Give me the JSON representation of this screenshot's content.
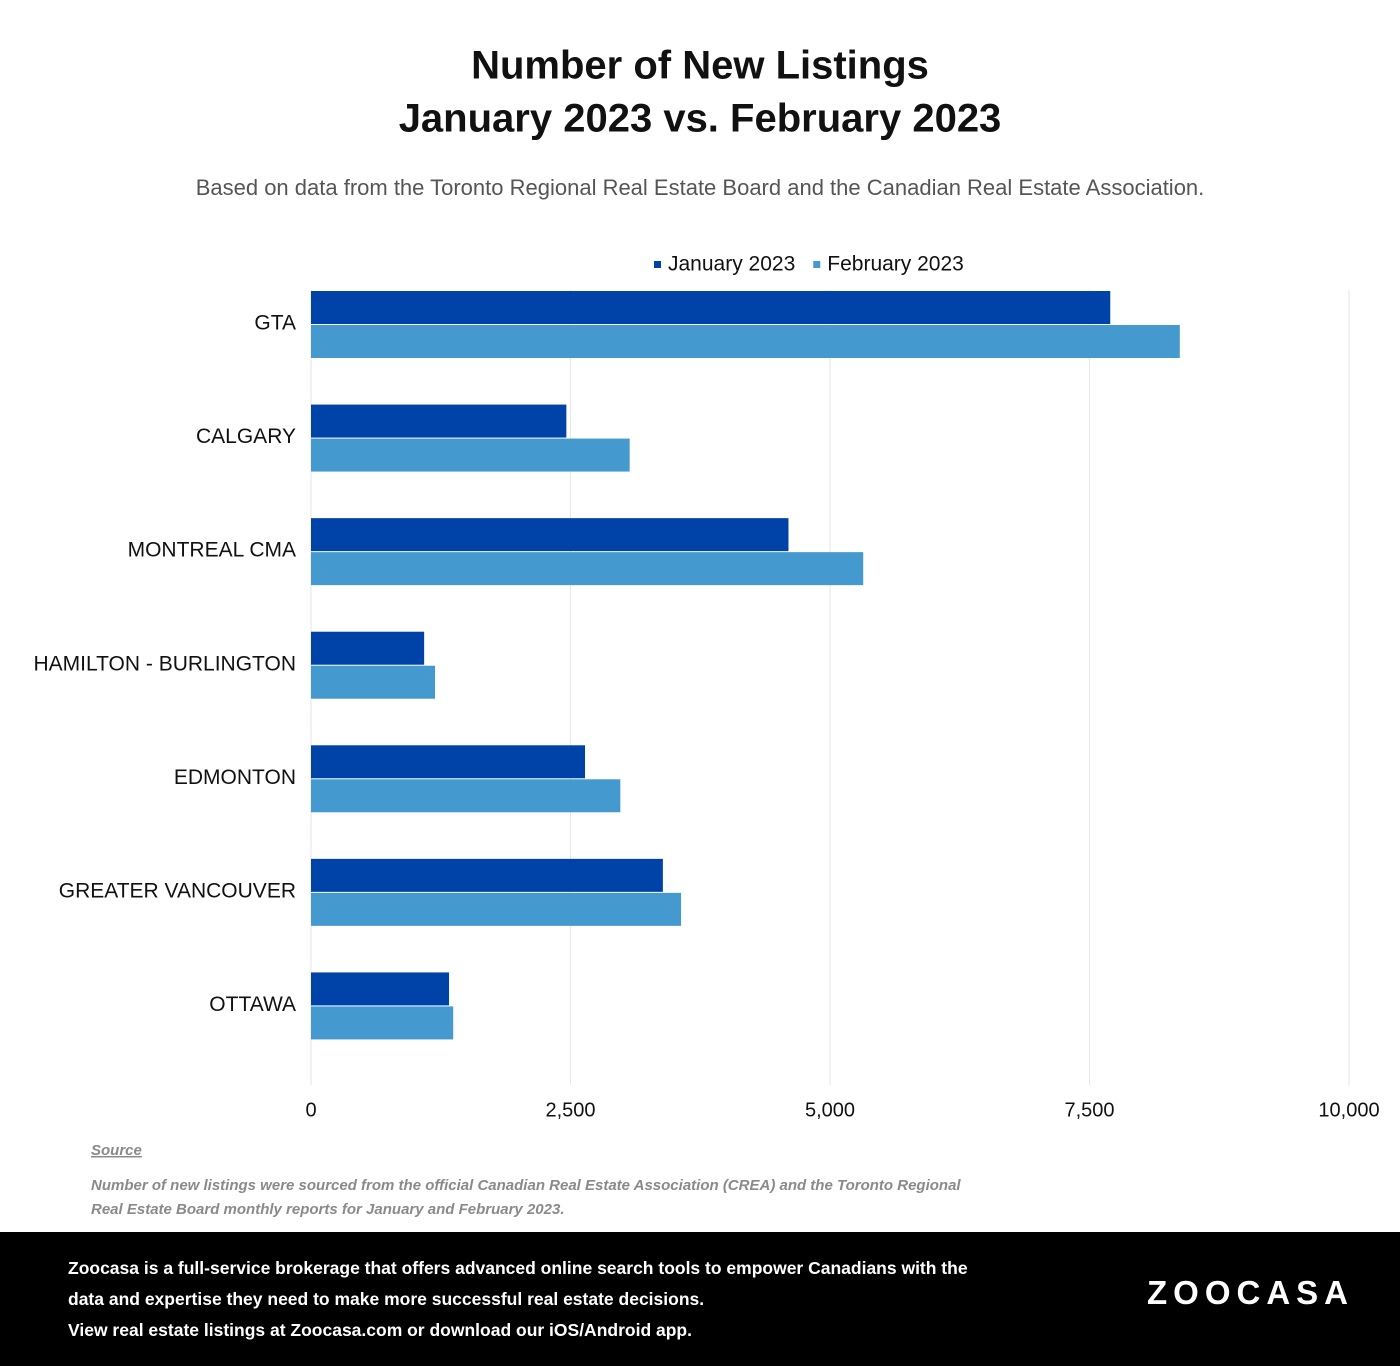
{
  "chart_data": {
    "type": "hbar",
    "title": [
      "Number of New Listings",
      "January 2023 vs. February 2023"
    ],
    "subtitle": "Based on data from the Toronto Regional Real Estate Board and the Canadian Real Estate Association.",
    "categories": [
      "GTA",
      "CALGARY",
      "MONTREAL CMA",
      "HAMILTON - BURLINGTON",
      "EDMONTON",
      "GREATER VANCOUVER",
      "OTTAWA"
    ],
    "series": [
      {
        "name": "January 2023",
        "color": "#0043a8",
        "values": [
          7700,
          2460,
          4600,
          1090,
          2640,
          3390,
          1330
        ]
      },
      {
        "name": "February 2023",
        "color": "#4499cf",
        "values": [
          8370,
          3070,
          5320,
          1195,
          2980,
          3565,
          1370
        ]
      }
    ],
    "xlim": [
      0,
      10000
    ],
    "xticks": [
      0,
      {
        "value": 2500,
        "label": "2,500"
      },
      {
        "value": 5000,
        "label": "5,000"
      },
      {
        "value": 7500,
        "label": "7,500"
      },
      {
        "value": 10000,
        "label": "10,000"
      }
    ],
    "grid": true,
    "legend": "top"
  },
  "source": {
    "heading": "Source",
    "lines": [
      "Number of new listings were sourced from the official Canadian Real Estate Association (CREA) and the Toronto Regional",
      "Real Estate Board monthly reports for January and February 2023."
    ]
  },
  "footer": {
    "lines": [
      "Zoocasa is a full-service brokerage that offers advanced online search tools to empower Canadians with the",
      "data and expertise they need to make more successful real estate decisions.",
      "View real estate listings at Zoocasa.com or download our iOS/Android app."
    ],
    "logo": "ZOOCASA"
  }
}
